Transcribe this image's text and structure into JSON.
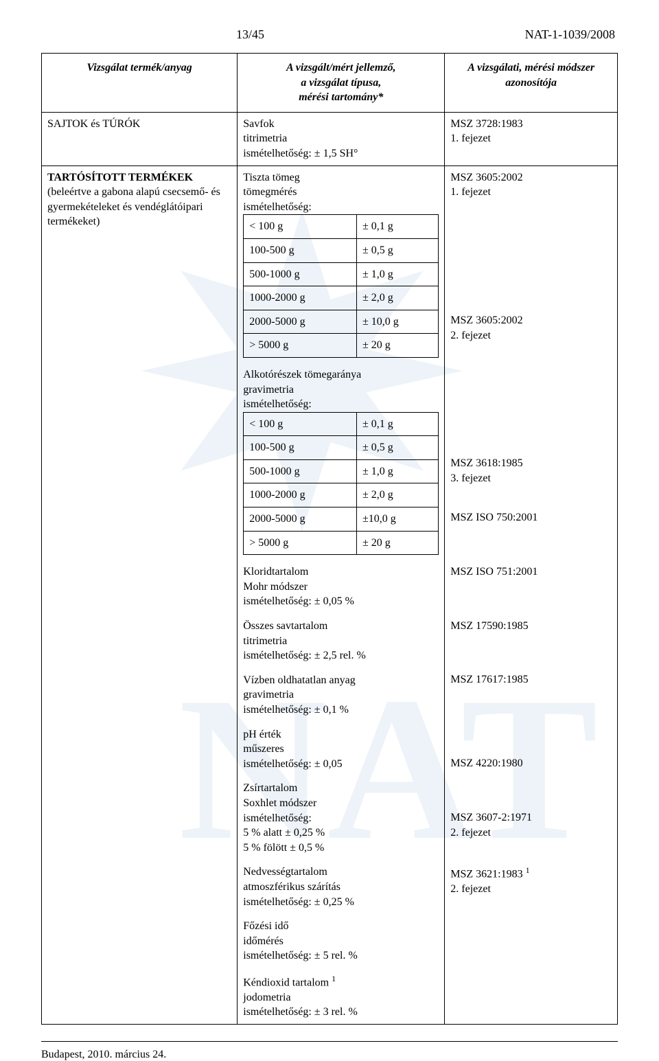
{
  "header": {
    "page_num": "13/45",
    "doc_ref": "NAT-1-1039/2008"
  },
  "columns": {
    "c1": "Vizsgálat termék/anyag",
    "c2": "A vizsgált/mért jellemző,\na vizsgálat típusa,\nmérési tartomány*",
    "c3": "A vizsgálati, mérési módszer\nazonosítója"
  },
  "row1": {
    "product": "SAJTOK és TÚRÓK",
    "mid": {
      "l1": "Savfok",
      "l2": "titrimetria",
      "l3": "ismételhetőség: ± 1,5 SH°"
    },
    "right": {
      "l1": "MSZ 3728:1983",
      "l2": "1. fejezet"
    }
  },
  "row2": {
    "product_title": "TARTÓSÍTOTT TERMÉKEK",
    "product_sub": "(beleértve a gabona alapú csecsemő- és gyermekételeket  és vendéglátóipari termékeket)",
    "blocks": [
      {
        "intro": [
          "Tiszta tömeg",
          "tömegmérés",
          "ismételhetőség:"
        ],
        "pairs": [
          [
            "< 100 g",
            "± 0,1 g"
          ],
          [
            "100-500 g",
            "± 0,5 g"
          ],
          [
            "500-1000 g",
            "± 1,0 g"
          ],
          [
            "1000-2000 g",
            "± 2,0 g"
          ],
          [
            "2000-5000 g",
            "± 10,0 g"
          ],
          [
            "> 5000 g",
            "± 20 g"
          ]
        ],
        "right": [
          "MSZ 3605:2002",
          "1. fejezet"
        ]
      },
      {
        "intro": [
          "Alkotórészek tömegaránya",
          "gravimetria",
          "ismételhetőség:"
        ],
        "pairs": [
          [
            "< 100 g",
            "± 0,1 g"
          ],
          [
            "100-500 g",
            "± 0,5 g"
          ],
          [
            "500-1000 g",
            "± 1,0 g"
          ],
          [
            "1000-2000 g",
            "± 2,0 g"
          ],
          [
            "2000-5000 g",
            "±10,0 g"
          ],
          [
            "> 5000 g",
            "± 20 g"
          ]
        ],
        "right": [
          "MSZ 3605:2002",
          "2. fejezet"
        ]
      },
      {
        "intro": [
          "Kloridtartalom",
          "Mohr módszer",
          "ismételhetőség: ± 0,05 %"
        ],
        "pairs": [],
        "right": [
          "MSZ 3618:1985",
          "3. fejezet"
        ]
      },
      {
        "intro": [
          "Összes savtartalom",
          "titrimetria",
          "ismételhetőség: ± 2,5 rel. %"
        ],
        "pairs": [],
        "right": [
          "MSZ ISO 750:2001"
        ]
      },
      {
        "intro": [
          "Vízben oldhatatlan anyag",
          "gravimetria",
          "ismételhetőség: ± 0,1 %"
        ],
        "pairs": [],
        "right": [
          "MSZ ISO 751:2001"
        ]
      },
      {
        "intro": [
          "pH érték",
          "műszeres",
          "ismételhetőség: ± 0,05"
        ],
        "pairs": [],
        "right": [
          "MSZ 17590:1985"
        ]
      },
      {
        "intro": [
          "Zsírtartalom",
          "Soxhlet módszer",
          "ismételhetőség:",
          "5 % alatt ± 0,25  %",
          "5 % fölött ± 0,5 %"
        ],
        "pairs": [],
        "right": [
          "MSZ 17617:1985"
        ]
      },
      {
        "intro": [
          "Nedvességtartalom",
          "atmoszférikus szárítás",
          "ismételhetőség: ± 0,25 %"
        ],
        "pairs": [],
        "right": [
          "MSZ 4220:1980"
        ]
      },
      {
        "intro": [
          "Főzési idő",
          "időmérés",
          "ismételhetőség: ± 5 rel. %"
        ],
        "pairs": [],
        "right": [
          "MSZ 3607-2:1971",
          "2. fejezet"
        ]
      },
      {
        "intro_html": "Kéndioxid tartalom <sup>1</sup>",
        "intro_rest": [
          "jodometria",
          "ismételhetőség: ± 3 rel. %"
        ],
        "pairs": [],
        "right_html": "MSZ 3621:1983 <sup>1</sup>",
        "right_rest": [
          "2. fejezet"
        ]
      }
    ]
  },
  "footer": "Budapest, 2010. március 24.",
  "colors": {
    "text": "#000000",
    "bg": "#ffffff",
    "watermark": "#edf3f8",
    "border": "#000000"
  }
}
